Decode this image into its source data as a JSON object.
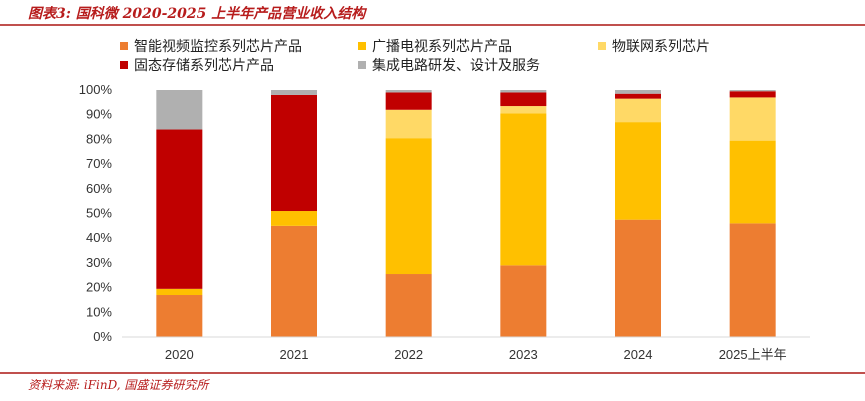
{
  "header": {
    "title": "图表3: 国科微 2020-2025 上半年产品营业收入结构"
  },
  "footer": {
    "source": "资料来源: iFinD, 国盛证券研究所"
  },
  "colors": {
    "accent": "#c0504d",
    "text_red": "#b71c1c"
  },
  "chart_data": {
    "type": "bar",
    "stacked": true,
    "title": "国科微 2020-2025 上半年产品营业收入结构",
    "xlabel": "",
    "ylabel": "",
    "ylim": [
      0,
      100
    ],
    "y_ticks": [
      "0%",
      "10%",
      "20%",
      "30%",
      "40%",
      "50%",
      "60%",
      "70%",
      "80%",
      "90%",
      "100%"
    ],
    "y_tick_values": [
      0,
      10,
      20,
      30,
      40,
      50,
      60,
      70,
      80,
      90,
      100
    ],
    "grid": false,
    "legend_position": "top",
    "categories": [
      "2020",
      "2021",
      "2022",
      "2023",
      "2024",
      "2025上半年"
    ],
    "series": [
      {
        "name": "智能视频监控系列芯片产品",
        "color": "#ed7d31",
        "values": [
          17,
          45,
          25.5,
          29,
          47.5,
          46
        ]
      },
      {
        "name": "广播电视系列芯片产品",
        "color": "#ffc000",
        "values": [
          2.5,
          6,
          55,
          61.5,
          39.5,
          33.5
        ]
      },
      {
        "name": "物联网系列芯片",
        "color": "#ffd966",
        "values": [
          0,
          0,
          11.5,
          3,
          9.5,
          17.5
        ]
      },
      {
        "name": "固态存储系列芯片产品",
        "color": "#c00000",
        "values": [
          64.5,
          47,
          7,
          5.5,
          2,
          2.5
        ]
      },
      {
        "name": "集成电路研发、设计及服务",
        "color": "#b0b0b0",
        "values": [
          16,
          2,
          1,
          1,
          1.5,
          0.5
        ]
      }
    ]
  }
}
